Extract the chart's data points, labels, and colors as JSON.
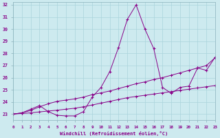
{
  "xlabel": "Windchill (Refroidissement éolien,°C)",
  "background_color": "#cdeaef",
  "grid_color": "#aad4dc",
  "line_color": "#880088",
  "xlim": [
    0,
    23
  ],
  "ylim": [
    23,
    32
  ],
  "xticks": [
    0,
    1,
    2,
    3,
    4,
    5,
    6,
    7,
    8,
    9,
    10,
    11,
    12,
    13,
    14,
    15,
    16,
    17,
    18,
    19,
    20,
    21,
    22,
    23
  ],
  "yticks": [
    23,
    24,
    25,
    26,
    27,
    28,
    29,
    30,
    31,
    32
  ],
  "line1_x": [
    0,
    1,
    2,
    3,
    4,
    5,
    6,
    7,
    8,
    9,
    10,
    11,
    12,
    13,
    14,
    15,
    16,
    17,
    18,
    19,
    20,
    21,
    22,
    23
  ],
  "line1_y": [
    23.0,
    23.1,
    23.4,
    23.7,
    23.2,
    22.9,
    22.85,
    22.85,
    23.2,
    24.4,
    25.2,
    26.5,
    28.5,
    30.8,
    32.0,
    30.0,
    28.4,
    25.2,
    24.7,
    25.2,
    25.3,
    26.8,
    26.6,
    27.7
  ],
  "line2_x": [
    0,
    1,
    2,
    3,
    4,
    5,
    6,
    7,
    8,
    9,
    10,
    11,
    12,
    13,
    14,
    15,
    16,
    17,
    18,
    19,
    20,
    21,
    22,
    23
  ],
  "line2_y": [
    23.0,
    23.1,
    23.3,
    23.6,
    23.85,
    24.05,
    24.15,
    24.25,
    24.4,
    24.6,
    24.75,
    24.9,
    25.1,
    25.3,
    25.5,
    25.65,
    25.85,
    26.0,
    26.2,
    26.4,
    26.6,
    26.8,
    27.0,
    27.65
  ],
  "line3_x": [
    0,
    1,
    2,
    3,
    4,
    5,
    6,
    7,
    8,
    9,
    10,
    11,
    12,
    13,
    14,
    15,
    16,
    17,
    18,
    19,
    20,
    21,
    22,
    23
  ],
  "line3_y": [
    23.0,
    23.05,
    23.1,
    23.18,
    23.25,
    23.32,
    23.4,
    23.48,
    23.6,
    23.75,
    23.9,
    24.05,
    24.2,
    24.35,
    24.45,
    24.55,
    24.65,
    24.75,
    24.85,
    24.95,
    25.05,
    25.15,
    25.25,
    25.35
  ]
}
